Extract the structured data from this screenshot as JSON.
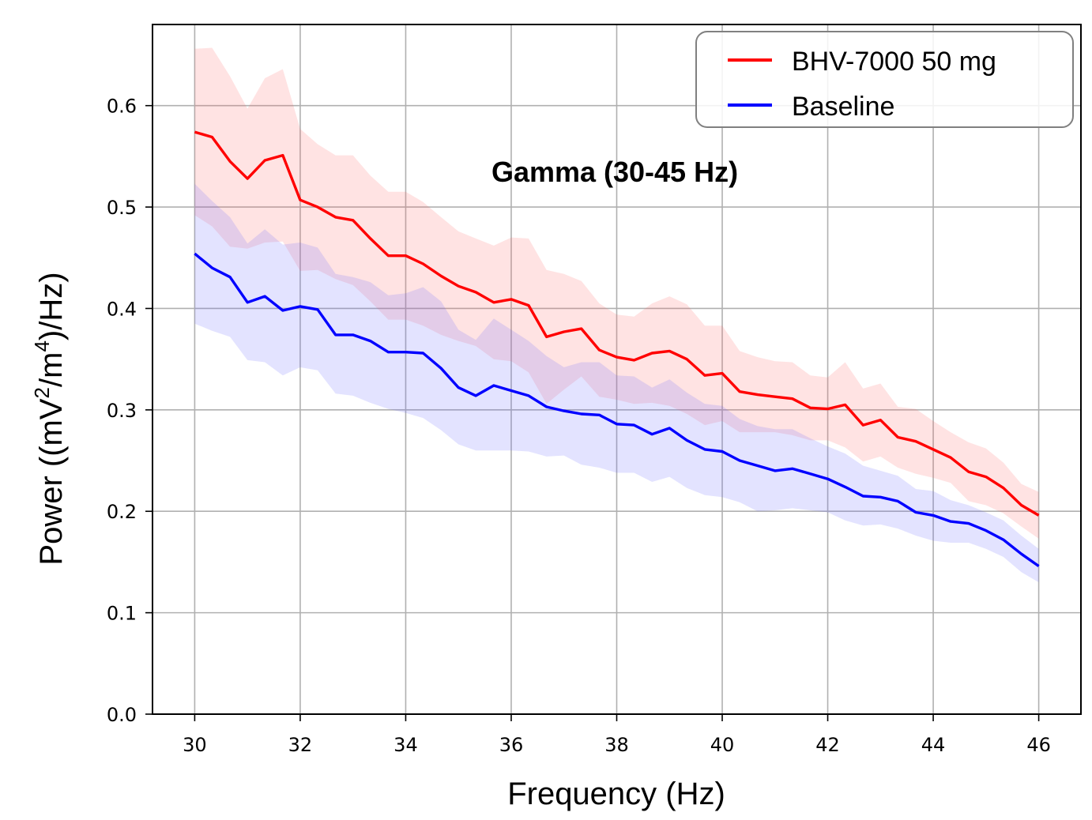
{
  "chart_data": {
    "type": "line",
    "title": "Gamma (30-45 Hz)",
    "xlabel": "Frequency (Hz)",
    "ylabel_parts": [
      "Power ((mV",
      "2",
      "/m",
      "4",
      ")/Hz)"
    ],
    "xlim": [
      29.2,
      46.8
    ],
    "ylim": [
      0.0,
      0.68
    ],
    "xticks": [
      30,
      32,
      34,
      36,
      38,
      40,
      42,
      44,
      46
    ],
    "yticks": [
      0.0,
      0.1,
      0.2,
      0.3,
      0.4,
      0.5,
      0.6
    ],
    "xtick_labels": [
      "30",
      "32",
      "34",
      "36",
      "38",
      "40",
      "42",
      "44",
      "46"
    ],
    "ytick_labels": [
      "0.0",
      "0.1",
      "0.2",
      "0.3",
      "0.4",
      "0.5",
      "0.6"
    ],
    "grid": true,
    "legend_position": "top-right",
    "x": [
      30.0,
      30.33,
      30.67,
      31.0,
      31.33,
      31.67,
      32.0,
      32.33,
      32.67,
      33.0,
      33.33,
      33.67,
      34.0,
      34.33,
      34.67,
      35.0,
      35.33,
      35.67,
      36.0,
      36.33,
      36.67,
      37.0,
      37.33,
      37.67,
      38.0,
      38.33,
      38.67,
      39.0,
      39.33,
      39.67,
      40.0,
      40.33,
      40.67,
      41.0,
      41.33,
      41.67,
      42.0,
      42.33,
      42.67,
      43.0,
      43.33,
      43.67,
      44.0,
      44.33,
      44.67,
      45.0,
      45.33,
      45.67,
      46.0
    ],
    "series": [
      {
        "name": "BHV-7000 50 mg",
        "color": "#ff0000",
        "band_color": "#ff6666",
        "values": [
          0.574,
          0.569,
          0.545,
          0.528,
          0.546,
          0.551,
          0.507,
          0.5,
          0.49,
          0.487,
          0.469,
          0.452,
          0.452,
          0.444,
          0.432,
          0.422,
          0.416,
          0.406,
          0.409,
          0.403,
          0.372,
          0.377,
          0.38,
          0.359,
          0.352,
          0.349,
          0.356,
          0.358,
          0.35,
          0.334,
          0.336,
          0.318,
          0.315,
          0.313,
          0.311,
          0.302,
          0.301,
          0.305,
          0.285,
          0.29,
          0.273,
          0.269,
          0.261,
          0.253,
          0.239,
          0.234,
          0.223,
          0.206,
          0.196
        ],
        "upper": [
          0.656,
          0.657,
          0.629,
          0.597,
          0.627,
          0.636,
          0.577,
          0.562,
          0.551,
          0.551,
          0.531,
          0.515,
          0.515,
          0.505,
          0.49,
          0.476,
          0.469,
          0.462,
          0.47,
          0.469,
          0.438,
          0.434,
          0.427,
          0.405,
          0.394,
          0.392,
          0.405,
          0.412,
          0.404,
          0.383,
          0.383,
          0.358,
          0.352,
          0.348,
          0.347,
          0.334,
          0.332,
          0.347,
          0.321,
          0.326,
          0.303,
          0.301,
          0.289,
          0.278,
          0.268,
          0.262,
          0.248,
          0.227,
          0.219
        ],
        "lower": [
          0.492,
          0.481,
          0.461,
          0.459,
          0.465,
          0.466,
          0.437,
          0.438,
          0.429,
          0.423,
          0.407,
          0.389,
          0.389,
          0.383,
          0.374,
          0.368,
          0.363,
          0.35,
          0.348,
          0.337,
          0.306,
          0.32,
          0.333,
          0.313,
          0.31,
          0.306,
          0.307,
          0.304,
          0.296,
          0.285,
          0.289,
          0.278,
          0.278,
          0.278,
          0.275,
          0.27,
          0.27,
          0.263,
          0.249,
          0.254,
          0.243,
          0.237,
          0.233,
          0.228,
          0.21,
          0.206,
          0.198,
          0.185,
          0.173
        ]
      },
      {
        "name": "Baseline",
        "color": "#0000ff",
        "band_color": "#6666ff",
        "values": [
          0.454,
          0.44,
          0.431,
          0.406,
          0.412,
          0.398,
          0.402,
          0.399,
          0.374,
          0.374,
          0.368,
          0.357,
          0.357,
          0.356,
          0.341,
          0.322,
          0.314,
          0.324,
          0.319,
          0.314,
          0.303,
          0.299,
          0.296,
          0.295,
          0.286,
          0.285,
          0.276,
          0.282,
          0.27,
          0.261,
          0.259,
          0.25,
          0.245,
          0.24,
          0.242,
          0.237,
          0.232,
          0.224,
          0.215,
          0.214,
          0.21,
          0.199,
          0.196,
          0.19,
          0.188,
          0.181,
          0.172,
          0.158,
          0.146
        ],
        "upper": [
          0.523,
          0.506,
          0.49,
          0.464,
          0.478,
          0.463,
          0.465,
          0.46,
          0.434,
          0.431,
          0.426,
          0.413,
          0.415,
          0.421,
          0.407,
          0.379,
          0.369,
          0.39,
          0.379,
          0.368,
          0.353,
          0.342,
          0.347,
          0.347,
          0.334,
          0.333,
          0.322,
          0.33,
          0.317,
          0.306,
          0.304,
          0.291,
          0.284,
          0.281,
          0.281,
          0.272,
          0.264,
          0.257,
          0.245,
          0.24,
          0.235,
          0.222,
          0.22,
          0.211,
          0.206,
          0.199,
          0.191,
          0.176,
          0.163
        ],
        "lower": [
          0.385,
          0.378,
          0.372,
          0.349,
          0.347,
          0.334,
          0.342,
          0.339,
          0.316,
          0.314,
          0.307,
          0.301,
          0.297,
          0.292,
          0.28,
          0.266,
          0.26,
          0.26,
          0.26,
          0.259,
          0.254,
          0.255,
          0.246,
          0.243,
          0.238,
          0.238,
          0.229,
          0.234,
          0.223,
          0.216,
          0.214,
          0.209,
          0.2,
          0.201,
          0.203,
          0.201,
          0.199,
          0.191,
          0.186,
          0.187,
          0.183,
          0.176,
          0.171,
          0.169,
          0.169,
          0.163,
          0.155,
          0.14,
          0.13
        ]
      }
    ]
  }
}
